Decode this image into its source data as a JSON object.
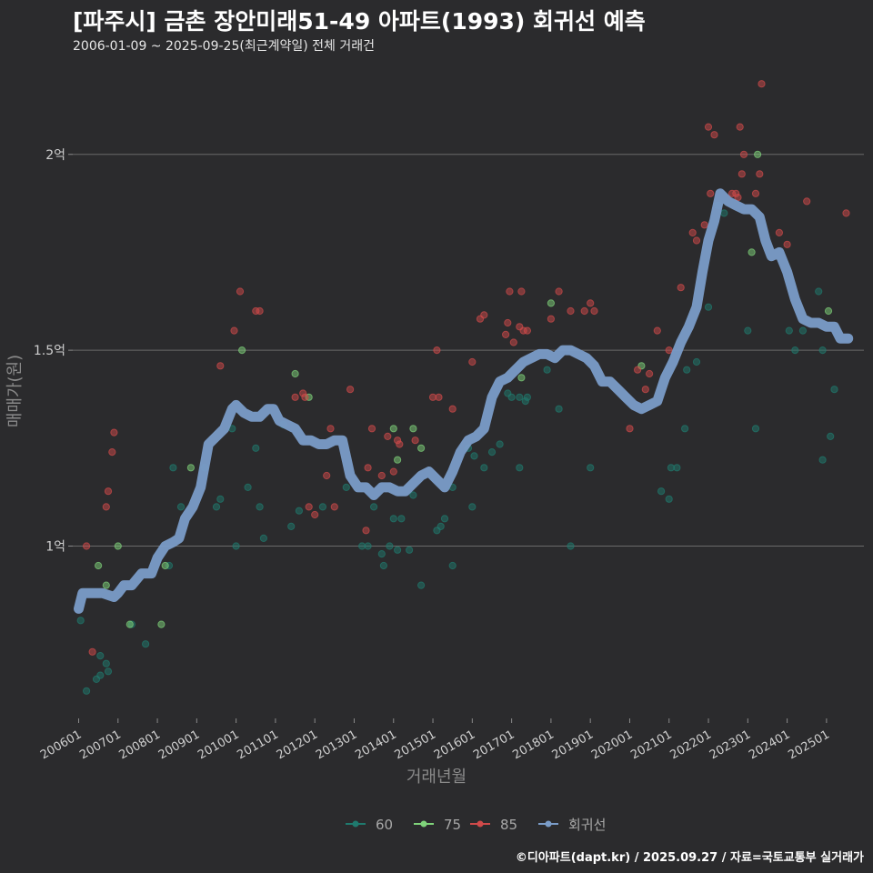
{
  "header": {
    "title": "[파주시] 금촌 장안미래51-49 아파트(1993) 회귀선 예측",
    "subtitle": "2006-01-09 ~ 2025-09-25(최근계약일) 전체 거래건"
  },
  "footer": {
    "credit": "©디아파트(dapt.kr) / 2025.09.27 / 자료=국토교통부 실거래가"
  },
  "chart_data": {
    "type": "scatter",
    "title": "[파주시] 금촌 장안미래51-49 아파트(1993) 회귀선 예측",
    "subtitle": "2006-01-09 ~ 2025-09-25(최근계약일) 전체 거래건",
    "xlabel": "거래년월",
    "ylabel": "매매가(원)",
    "xlim": [
      2005.85,
      2025.95
    ],
    "ylim": [
      0.56,
      2.22
    ],
    "y_unit": "억",
    "x_ticks": [
      {
        "label": "200601",
        "value": 2006
      },
      {
        "label": "200701",
        "value": 2007
      },
      {
        "label": "200801",
        "value": 2008
      },
      {
        "label": "200901",
        "value": 2009
      },
      {
        "label": "201001",
        "value": 2010
      },
      {
        "label": "201101",
        "value": 2011
      },
      {
        "label": "201201",
        "value": 2012
      },
      {
        "label": "201301",
        "value": 2013
      },
      {
        "label": "201401",
        "value": 2014
      },
      {
        "label": "201501",
        "value": 2015
      },
      {
        "label": "201601",
        "value": 2016
      },
      {
        "label": "201701",
        "value": 2017
      },
      {
        "label": "201801",
        "value": 2018
      },
      {
        "label": "201901",
        "value": 2019
      },
      {
        "label": "202001",
        "value": 2020
      },
      {
        "label": "202101",
        "value": 2021
      },
      {
        "label": "202201",
        "value": 2022
      },
      {
        "label": "202301",
        "value": 2023
      },
      {
        "label": "202401",
        "value": 2024
      },
      {
        "label": "202501",
        "value": 2025
      }
    ],
    "y_ticks": [
      {
        "label": "1억",
        "value": 1.0
      },
      {
        "label": "1.5억",
        "value": 1.5
      },
      {
        "label": "2억",
        "value": 2.0
      }
    ],
    "grid": "horizontal",
    "legend": {
      "placement": "bottom"
    },
    "series": [
      {
        "name": "60",
        "color": "#1f7a6e",
        "points": [
          [
            2006.05,
            0.81
          ],
          [
            2006.2,
            0.63
          ],
          [
            2006.45,
            0.66
          ],
          [
            2006.55,
            0.67
          ],
          [
            2006.55,
            0.72
          ],
          [
            2006.7,
            0.7
          ],
          [
            2006.75,
            0.68
          ],
          [
            2007.35,
            0.8
          ],
          [
            2007.7,
            0.75
          ],
          [
            2008.3,
            0.95
          ],
          [
            2008.4,
            1.2
          ],
          [
            2008.6,
            1.1
          ],
          [
            2009.2,
            1.2
          ],
          [
            2009.5,
            1.1
          ],
          [
            2009.6,
            1.12
          ],
          [
            2009.9,
            1.3
          ],
          [
            2010.0,
            1.0
          ],
          [
            2010.3,
            1.15
          ],
          [
            2010.5,
            1.25
          ],
          [
            2010.6,
            1.1
          ],
          [
            2010.7,
            1.02
          ],
          [
            2011.2,
            1.31
          ],
          [
            2011.4,
            1.05
          ],
          [
            2011.6,
            1.09
          ],
          [
            2012.2,
            1.1
          ],
          [
            2012.8,
            1.15
          ],
          [
            2013.2,
            1.0
          ],
          [
            2013.35,
            1.0
          ],
          [
            2013.5,
            1.1
          ],
          [
            2013.7,
            0.98
          ],
          [
            2013.75,
            0.95
          ],
          [
            2013.9,
            1.0
          ],
          [
            2014.0,
            1.07
          ],
          [
            2014.1,
            0.99
          ],
          [
            2014.2,
            1.07
          ],
          [
            2014.4,
            0.99
          ],
          [
            2014.5,
            1.13
          ],
          [
            2014.7,
            0.9
          ],
          [
            2015.1,
            1.04
          ],
          [
            2015.2,
            1.05
          ],
          [
            2015.3,
            1.07
          ],
          [
            2015.5,
            0.95
          ],
          [
            2015.5,
            1.15
          ],
          [
            2015.9,
            1.25
          ],
          [
            2016.0,
            1.1
          ],
          [
            2016.05,
            1.23
          ],
          [
            2016.3,
            1.2
          ],
          [
            2016.5,
            1.24
          ],
          [
            2016.7,
            1.26
          ],
          [
            2016.9,
            1.39
          ],
          [
            2017.0,
            1.38
          ],
          [
            2017.2,
            1.2
          ],
          [
            2017.2,
            1.38
          ],
          [
            2017.35,
            1.37
          ],
          [
            2017.4,
            1.38
          ],
          [
            2017.9,
            1.45
          ],
          [
            2018.2,
            1.35
          ],
          [
            2018.5,
            1.0
          ],
          [
            2019.0,
            1.2
          ],
          [
            2020.8,
            1.14
          ],
          [
            2021.0,
            1.12
          ],
          [
            2021.05,
            1.2
          ],
          [
            2021.2,
            1.2
          ],
          [
            2021.4,
            1.3
          ],
          [
            2021.45,
            1.45
          ],
          [
            2021.7,
            1.47
          ],
          [
            2022.0,
            1.61
          ],
          [
            2022.25,
            1.87
          ],
          [
            2022.4,
            1.85
          ],
          [
            2023.0,
            1.55
          ],
          [
            2023.2,
            1.3
          ],
          [
            2024.05,
            1.55
          ],
          [
            2024.2,
            1.5
          ],
          [
            2024.4,
            1.55
          ],
          [
            2024.8,
            1.65
          ],
          [
            2024.9,
            1.5
          ],
          [
            2024.9,
            1.22
          ],
          [
            2025.1,
            1.28
          ],
          [
            2025.2,
            1.4
          ]
        ]
      },
      {
        "name": "75",
        "color": "#7fd37a",
        "points": [
          [
            2006.5,
            0.95
          ],
          [
            2006.7,
            0.9
          ],
          [
            2007.0,
            1.0
          ],
          [
            2007.3,
            0.8
          ],
          [
            2008.1,
            0.8
          ],
          [
            2008.2,
            0.95
          ],
          [
            2008.85,
            1.2
          ],
          [
            2010.15,
            1.5
          ],
          [
            2011.5,
            1.44
          ],
          [
            2011.85,
            1.38
          ],
          [
            2014.0,
            1.3
          ],
          [
            2014.1,
            1.22
          ],
          [
            2014.5,
            1.3
          ],
          [
            2014.7,
            1.25
          ],
          [
            2017.25,
            1.43
          ],
          [
            2018.0,
            1.62
          ],
          [
            2020.3,
            1.46
          ],
          [
            2023.1,
            1.75
          ],
          [
            2023.25,
            2.0
          ],
          [
            2025.05,
            1.6
          ]
        ]
      },
      {
        "name": "85",
        "color": "#d04a4a",
        "points": [
          [
            2006.2,
            1.0
          ],
          [
            2006.35,
            0.73
          ],
          [
            2006.7,
            1.1
          ],
          [
            2006.75,
            1.14
          ],
          [
            2006.85,
            1.24
          ],
          [
            2006.9,
            1.29
          ],
          [
            2009.6,
            1.46
          ],
          [
            2009.95,
            1.55
          ],
          [
            2010.1,
            1.65
          ],
          [
            2010.5,
            1.6
          ],
          [
            2010.6,
            1.6
          ],
          [
            2011.5,
            1.38
          ],
          [
            2011.7,
            1.39
          ],
          [
            2011.75,
            1.38
          ],
          [
            2011.85,
            1.1
          ],
          [
            2012.0,
            1.08
          ],
          [
            2012.3,
            1.18
          ],
          [
            2012.4,
            1.3
          ],
          [
            2012.5,
            1.1
          ],
          [
            2012.9,
            1.4
          ],
          [
            2013.3,
            1.04
          ],
          [
            2013.35,
            1.2
          ],
          [
            2013.45,
            1.3
          ],
          [
            2013.7,
            1.18
          ],
          [
            2013.85,
            1.28
          ],
          [
            2014.0,
            1.19
          ],
          [
            2014.1,
            1.27
          ],
          [
            2014.15,
            1.26
          ],
          [
            2014.55,
            1.27
          ],
          [
            2015.0,
            1.38
          ],
          [
            2015.1,
            1.5
          ],
          [
            2015.15,
            1.38
          ],
          [
            2015.5,
            1.35
          ],
          [
            2016.0,
            1.47
          ],
          [
            2016.2,
            1.58
          ],
          [
            2016.3,
            1.59
          ],
          [
            2016.85,
            1.54
          ],
          [
            2016.9,
            1.57
          ],
          [
            2016.95,
            1.65
          ],
          [
            2017.05,
            1.52
          ],
          [
            2017.2,
            1.56
          ],
          [
            2017.25,
            1.65
          ],
          [
            2017.3,
            1.55
          ],
          [
            2017.4,
            1.55
          ],
          [
            2018.0,
            1.58
          ],
          [
            2018.2,
            1.65
          ],
          [
            2018.5,
            1.6
          ],
          [
            2018.85,
            1.6
          ],
          [
            2019.0,
            1.62
          ],
          [
            2019.1,
            1.6
          ],
          [
            2020.0,
            1.3
          ],
          [
            2020.2,
            1.45
          ],
          [
            2020.4,
            1.4
          ],
          [
            2020.5,
            1.44
          ],
          [
            2020.7,
            1.55
          ],
          [
            2021.0,
            1.5
          ],
          [
            2021.3,
            1.66
          ],
          [
            2021.6,
            1.8
          ],
          [
            2021.7,
            1.78
          ],
          [
            2021.9,
            1.82
          ],
          [
            2022.0,
            2.07
          ],
          [
            2022.05,
            1.9
          ],
          [
            2022.15,
            2.05
          ],
          [
            2022.6,
            1.9
          ],
          [
            2022.7,
            1.9
          ],
          [
            2022.75,
            1.89
          ],
          [
            2022.8,
            2.07
          ],
          [
            2022.85,
            1.95
          ],
          [
            2022.9,
            2.0
          ],
          [
            2023.2,
            1.9
          ],
          [
            2023.3,
            1.95
          ],
          [
            2023.35,
            2.18
          ],
          [
            2023.8,
            1.8
          ],
          [
            2024.0,
            1.77
          ],
          [
            2024.5,
            1.88
          ],
          [
            2025.5,
            1.85
          ]
        ]
      },
      {
        "name": "회귀선",
        "color": "#7a9cc8",
        "points": [
          [
            2006.0,
            0.84
          ],
          [
            2006.1,
            0.88
          ],
          [
            2006.3,
            0.88
          ],
          [
            2006.6,
            0.88
          ],
          [
            2006.9,
            0.87
          ],
          [
            2007.0,
            0.88
          ],
          [
            2007.15,
            0.9
          ],
          [
            2007.35,
            0.9
          ],
          [
            2007.6,
            0.93
          ],
          [
            2007.85,
            0.93
          ],
          [
            2008.0,
            0.97
          ],
          [
            2008.2,
            1.0
          ],
          [
            2008.4,
            1.01
          ],
          [
            2008.55,
            1.02
          ],
          [
            2008.7,
            1.07
          ],
          [
            2008.9,
            1.1
          ],
          [
            2009.1,
            1.15
          ],
          [
            2009.3,
            1.26
          ],
          [
            2009.5,
            1.28
          ],
          [
            2009.7,
            1.3
          ],
          [
            2009.9,
            1.35
          ],
          [
            2010.0,
            1.36
          ],
          [
            2010.2,
            1.34
          ],
          [
            2010.4,
            1.33
          ],
          [
            2010.6,
            1.33
          ],
          [
            2010.8,
            1.35
          ],
          [
            2010.95,
            1.35
          ],
          [
            2011.1,
            1.32
          ],
          [
            2011.3,
            1.31
          ],
          [
            2011.5,
            1.3
          ],
          [
            2011.7,
            1.27
          ],
          [
            2011.9,
            1.27
          ],
          [
            2012.1,
            1.26
          ],
          [
            2012.3,
            1.26
          ],
          [
            2012.5,
            1.27
          ],
          [
            2012.7,
            1.27
          ],
          [
            2012.9,
            1.18
          ],
          [
            2013.1,
            1.15
          ],
          [
            2013.3,
            1.15
          ],
          [
            2013.5,
            1.13
          ],
          [
            2013.7,
            1.15
          ],
          [
            2013.9,
            1.15
          ],
          [
            2014.1,
            1.14
          ],
          [
            2014.3,
            1.14
          ],
          [
            2014.5,
            1.16
          ],
          [
            2014.7,
            1.18
          ],
          [
            2014.9,
            1.19
          ],
          [
            2015.1,
            1.17
          ],
          [
            2015.3,
            1.15
          ],
          [
            2015.5,
            1.19
          ],
          [
            2015.7,
            1.24
          ],
          [
            2015.9,
            1.27
          ],
          [
            2016.1,
            1.28
          ],
          [
            2016.3,
            1.3
          ],
          [
            2016.5,
            1.38
          ],
          [
            2016.7,
            1.42
          ],
          [
            2016.9,
            1.43
          ],
          [
            2017.1,
            1.45
          ],
          [
            2017.3,
            1.47
          ],
          [
            2017.5,
            1.48
          ],
          [
            2017.7,
            1.49
          ],
          [
            2017.9,
            1.49
          ],
          [
            2018.1,
            1.48
          ],
          [
            2018.3,
            1.5
          ],
          [
            2018.5,
            1.5
          ],
          [
            2018.7,
            1.49
          ],
          [
            2018.9,
            1.48
          ],
          [
            2019.1,
            1.46
          ],
          [
            2019.3,
            1.42
          ],
          [
            2019.5,
            1.42
          ],
          [
            2019.7,
            1.4
          ],
          [
            2019.9,
            1.38
          ],
          [
            2020.1,
            1.36
          ],
          [
            2020.3,
            1.35
          ],
          [
            2020.5,
            1.36
          ],
          [
            2020.7,
            1.37
          ],
          [
            2020.9,
            1.43
          ],
          [
            2021.1,
            1.47
          ],
          [
            2021.3,
            1.52
          ],
          [
            2021.5,
            1.56
          ],
          [
            2021.7,
            1.61
          ],
          [
            2021.85,
            1.7
          ],
          [
            2022.0,
            1.78
          ],
          [
            2022.15,
            1.83
          ],
          [
            2022.3,
            1.9
          ],
          [
            2022.5,
            1.88
          ],
          [
            2022.7,
            1.87
          ],
          [
            2022.9,
            1.86
          ],
          [
            2023.1,
            1.86
          ],
          [
            2023.3,
            1.84
          ],
          [
            2023.45,
            1.78
          ],
          [
            2023.6,
            1.74
          ],
          [
            2023.8,
            1.75
          ],
          [
            2024.0,
            1.7
          ],
          [
            2024.2,
            1.63
          ],
          [
            2024.4,
            1.58
          ],
          [
            2024.6,
            1.57
          ],
          [
            2024.8,
            1.57
          ],
          [
            2025.0,
            1.56
          ],
          [
            2025.2,
            1.56
          ],
          [
            2025.35,
            1.53
          ],
          [
            2025.55,
            1.53
          ]
        ]
      }
    ]
  }
}
